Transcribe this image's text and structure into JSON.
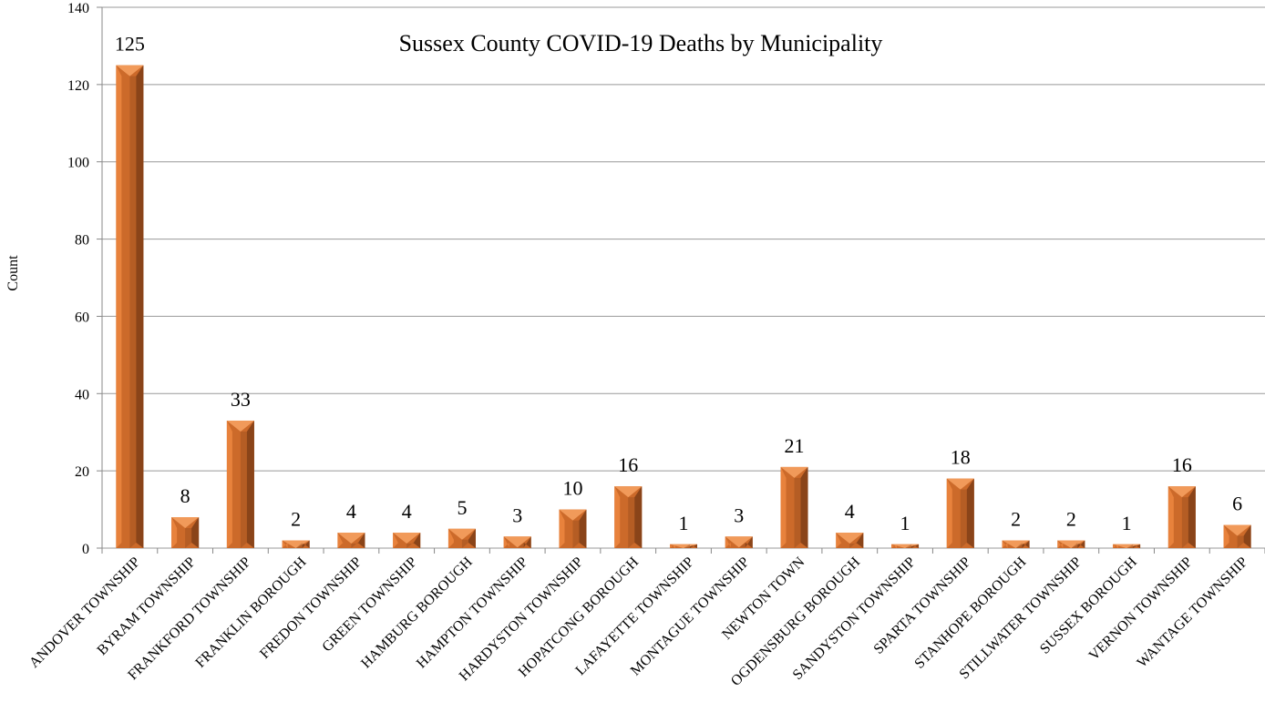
{
  "chart_data": {
    "type": "bar",
    "title": "Sussex County COVID-19 Deaths by Municipality",
    "xlabel": "",
    "ylabel": "Count",
    "ylim": [
      0,
      140
    ],
    "yticks": [
      0,
      20,
      40,
      60,
      80,
      100,
      120,
      140
    ],
    "grid": true,
    "categories": [
      "ANDOVER TOWNSHIP",
      "BYRAM TOWNSHIP",
      "FRANKFORD TOWNSHIP",
      "FRANKLIN BOROUGH",
      "FREDON TOWNSHIP",
      "GREEN TOWNSHIP",
      "HAMBURG BOROUGH",
      "HAMPTON TOWNSHIP",
      "HARDYSTON TOWNSHIP",
      "HOPATCONG BOROUGH",
      "LAFAYETTE TOWNSHIP",
      "MONTAGUE TOWNSHIP",
      "NEWTON TOWN",
      "OGDENSBURG BOROUGH",
      "SANDYSTON TOWNSHIP",
      "SPARTA TOWNSHIP",
      "STANHOPE BOROUGH",
      "STILLWATER TOWNSHIP",
      "SUSSEX BOROUGH",
      "VERNON TOWNSHIP",
      "WANTAGE TOWNSHIP"
    ],
    "values": [
      125,
      8,
      33,
      2,
      4,
      4,
      5,
      3,
      10,
      16,
      1,
      3,
      21,
      4,
      1,
      18,
      2,
      2,
      1,
      16,
      6
    ],
    "colors": {
      "bar_light": "#e8823c",
      "bar_mid": "#cc6a2a",
      "bar_dark": "#8a4419",
      "bar_top": "#f19a5a"
    }
  }
}
